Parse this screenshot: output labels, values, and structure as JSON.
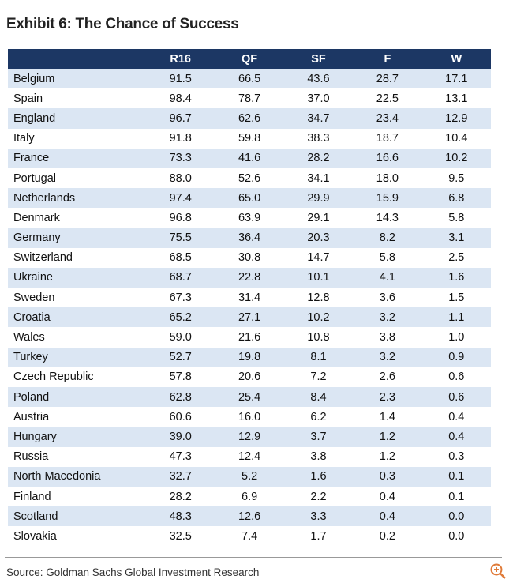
{
  "header": {
    "title": "Exhibit 6: The Chance of Success"
  },
  "table": {
    "columns": [
      "R16",
      "QF",
      "SF",
      "F",
      "W"
    ],
    "rows": [
      [
        "Belgium",
        "91.5",
        "66.5",
        "43.6",
        "28.7",
        "17.1"
      ],
      [
        "Spain",
        "98.4",
        "78.7",
        "37.0",
        "22.5",
        "13.1"
      ],
      [
        "England",
        "96.7",
        "62.6",
        "34.7",
        "23.4",
        "12.9"
      ],
      [
        "Italy",
        "91.8",
        "59.8",
        "38.3",
        "18.7",
        "10.4"
      ],
      [
        "France",
        "73.3",
        "41.6",
        "28.2",
        "16.6",
        "10.2"
      ],
      [
        "Portugal",
        "88.0",
        "52.6",
        "34.1",
        "18.0",
        "9.5"
      ],
      [
        "Netherlands",
        "97.4",
        "65.0",
        "29.9",
        "15.9",
        "6.8"
      ],
      [
        "Denmark",
        "96.8",
        "63.9",
        "29.1",
        "14.3",
        "5.8"
      ],
      [
        "Germany",
        "75.5",
        "36.4",
        "20.3",
        "8.2",
        "3.1"
      ],
      [
        "Switzerland",
        "68.5",
        "30.8",
        "14.7",
        "5.8",
        "2.5"
      ],
      [
        "Ukraine",
        "68.7",
        "22.8",
        "10.1",
        "4.1",
        "1.6"
      ],
      [
        "Sweden",
        "67.3",
        "31.4",
        "12.8",
        "3.6",
        "1.5"
      ],
      [
        "Croatia",
        "65.2",
        "27.1",
        "10.2",
        "3.2",
        "1.1"
      ],
      [
        "Wales",
        "59.0",
        "21.6",
        "10.8",
        "3.8",
        "1.0"
      ],
      [
        "Turkey",
        "52.7",
        "19.8",
        "8.1",
        "3.2",
        "0.9"
      ],
      [
        "Czech Republic",
        "57.8",
        "20.6",
        "7.2",
        "2.6",
        "0.6"
      ],
      [
        "Poland",
        "62.8",
        "25.4",
        "8.4",
        "2.3",
        "0.6"
      ],
      [
        "Austria",
        "60.6",
        "16.0",
        "6.2",
        "1.4",
        "0.4"
      ],
      [
        "Hungary",
        "39.0",
        "12.9",
        "3.7",
        "1.2",
        "0.4"
      ],
      [
        "Russia",
        "47.3",
        "12.4",
        "3.8",
        "1.2",
        "0.3"
      ],
      [
        "North Macedonia",
        "32.7",
        "5.2",
        "1.6",
        "0.3",
        "0.1"
      ],
      [
        "Finland",
        "28.2",
        "6.9",
        "2.2",
        "0.4",
        "0.1"
      ],
      [
        "Scotland",
        "48.3",
        "12.6",
        "3.3",
        "0.4",
        "0.0"
      ],
      [
        "Slovakia",
        "32.5",
        "7.4",
        "1.7",
        "0.2",
        "0.0"
      ]
    ]
  },
  "footer": {
    "source": "Source: Goldman Sachs Global Investment Research"
  }
}
